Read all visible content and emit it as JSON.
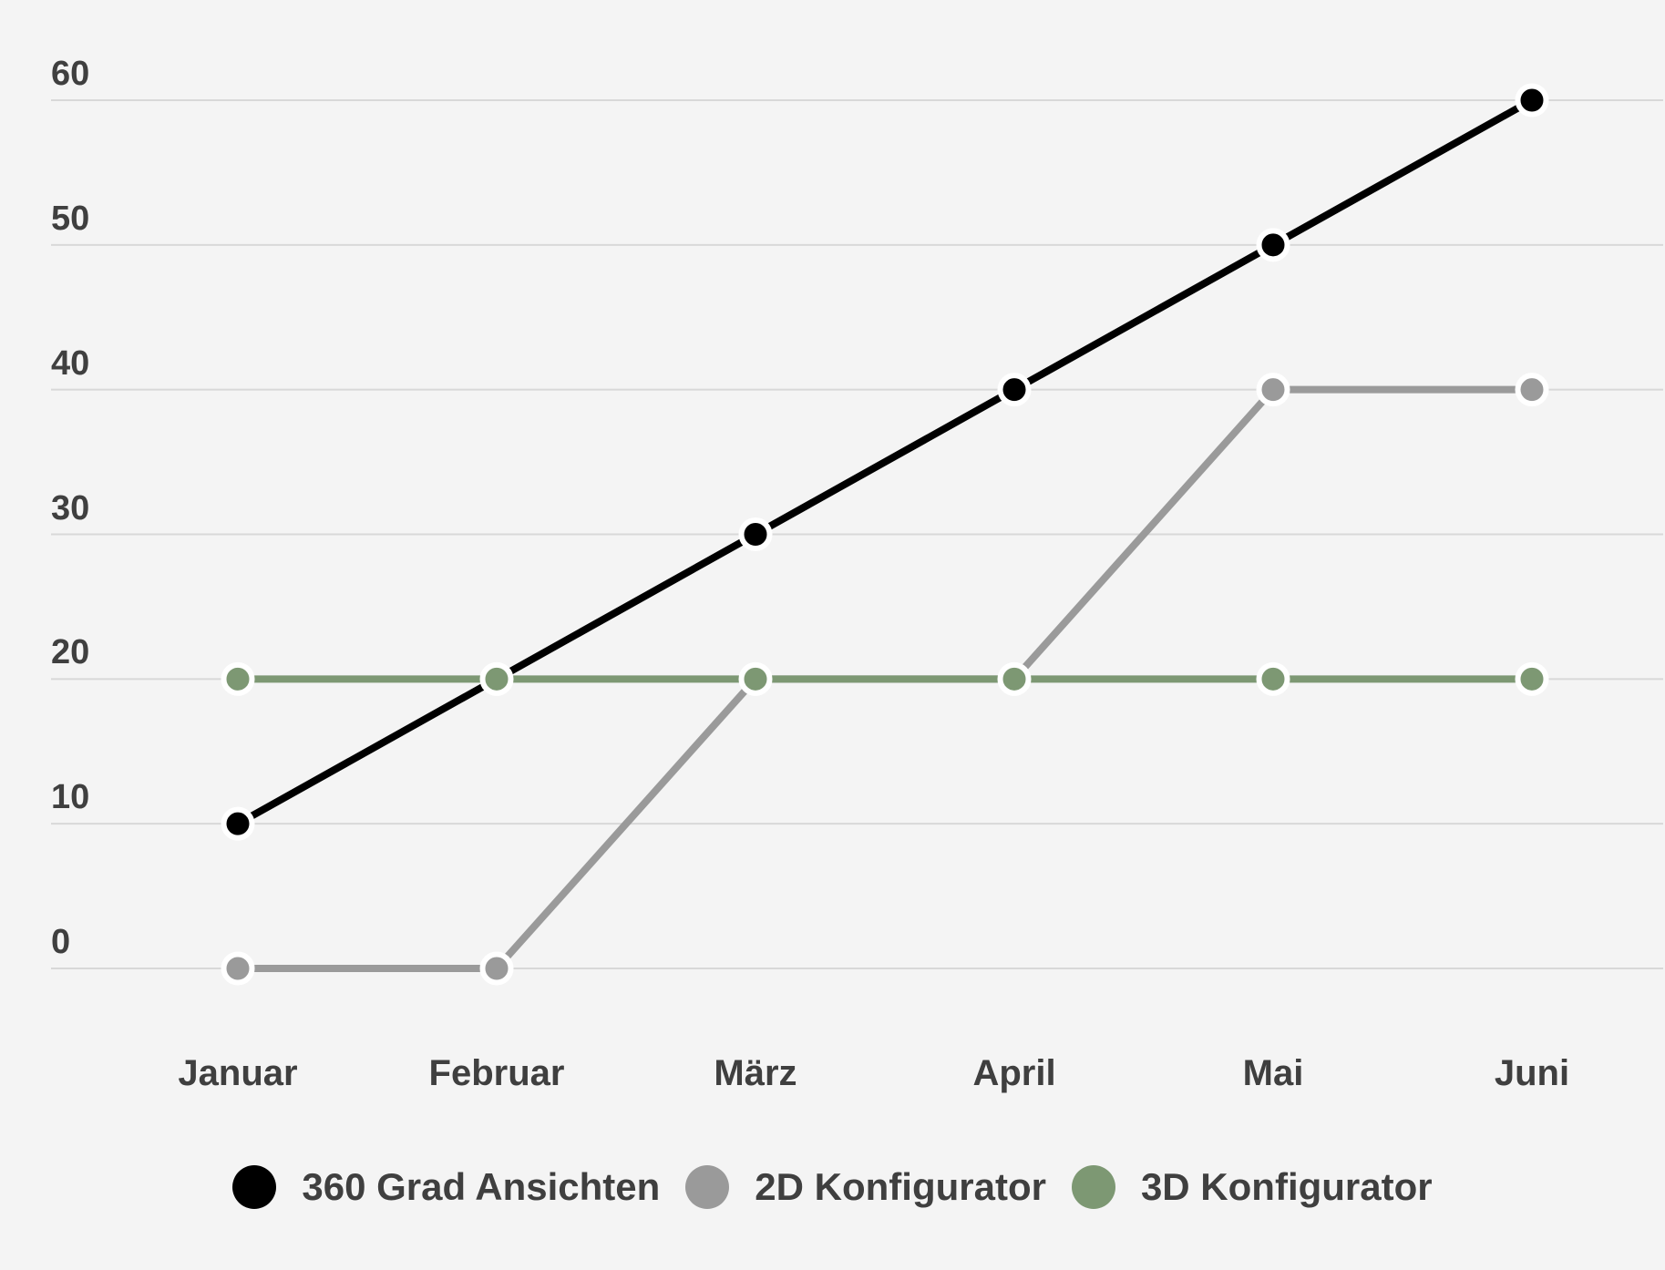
{
  "chart_data": {
    "type": "line",
    "title": "",
    "xlabel": "",
    "ylabel": "",
    "categories": [
      "Januar",
      "Februar",
      "März",
      "April",
      "Mai",
      "Juni"
    ],
    "yticks": [
      0,
      10,
      20,
      30,
      40,
      50,
      60
    ],
    "ylim": [
      0,
      60
    ],
    "grid": true,
    "legend_position": "bottom",
    "colors": {
      "background": "#f4f4f4",
      "gridline": "#d8d8d8",
      "label_text": "#3f3f3f",
      "point_ring": "#ffffff"
    },
    "series": [
      {
        "name": "360 Grad Ansichten",
        "color": "#000000",
        "values": [
          10,
          20,
          30,
          40,
          50,
          60
        ]
      },
      {
        "name": "2D Konfigurator",
        "color": "#9a9a9a",
        "values": [
          0,
          0,
          20,
          20,
          40,
          40
        ]
      },
      {
        "name": "3D Konfigurator",
        "color": "#7d9873",
        "values": [
          20,
          20,
          20,
          20,
          20,
          20
        ]
      }
    ]
  }
}
